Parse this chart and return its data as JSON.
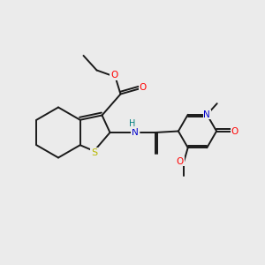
{
  "background_color": "#ebebeb",
  "bond_color": "#1a1a1a",
  "atom_colors": {
    "S": "#b8b800",
    "O": "#ff0000",
    "N": "#0000cc",
    "H": "#008080",
    "C": "#1a1a1a"
  },
  "figsize": [
    3.0,
    3.0
  ],
  "dpi": 100
}
